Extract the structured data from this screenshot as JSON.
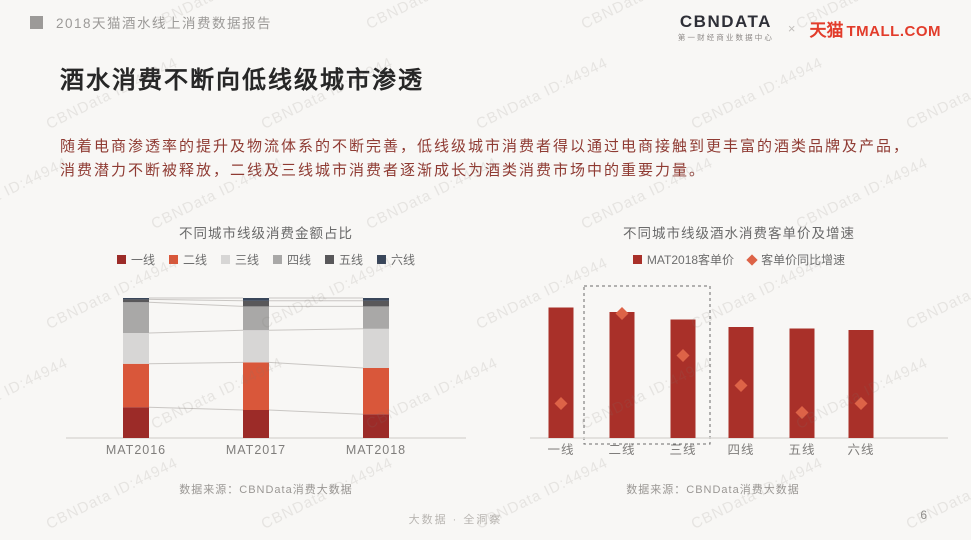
{
  "page": {
    "background": "#f8f7f5",
    "watermark_text": "CBNData ID:44944",
    "footer_slogan": "大数据 · 全洞察",
    "page_number": "6"
  },
  "header": {
    "report_title": "2018天猫酒水线上消费数据报告",
    "cbndata_logo": "CBNDATA",
    "cbndata_sub": "第一财经商业数据中心",
    "separator": "×",
    "tmall_cn": "天猫",
    "tmall_en": "TMALL.COM"
  },
  "content": {
    "headline": "酒水消费不断向低线级城市渗透",
    "body_line1": "随着电商渗透率的提升及物流体系的不断完善，低线级城市消费者得以通过电商接触到更丰富的酒类品牌及产品，",
    "body_line2": "消费潜力不断被释放，二线及三线城市消费者逐渐成长为酒类消费市场中的重要力量。"
  },
  "left_chart": {
    "title": "不同城市线级消费金额占比",
    "source": "数据来源：CBNData消费大数据"
  },
  "right_chart": {
    "title": "不同城市线级酒水消费客单价及增速",
    "source": "数据来源：CBNData消费大数据"
  },
  "chart_data": [
    {
      "type": "bar",
      "subtype": "100%-stacked-column",
      "title": "不同城市线级消费金额占比",
      "categories": [
        "MAT2016",
        "MAT2017",
        "MAT2018"
      ],
      "series": [
        {
          "name": "一线",
          "color": "#9c2b28",
          "values_pct": [
            22,
            20,
            17
          ]
        },
        {
          "name": "二线",
          "color": "#d9573a",
          "values_pct": [
            31,
            34,
            33
          ]
        },
        {
          "name": "三线",
          "color": "#d7d6d5",
          "values_pct": [
            22,
            23,
            28
          ]
        },
        {
          "name": "四线",
          "color": "#a9a8a7",
          "values_pct": [
            22,
            17,
            16
          ]
        },
        {
          "name": "五线",
          "color": "#59585a",
          "values_pct": [
            2,
            4,
            4
          ]
        },
        {
          "name": "六线",
          "color": "#39465a",
          "values_pct": [
            1,
            2,
            2
          ]
        }
      ],
      "xlabel": "",
      "ylabel": "",
      "ylim_pct": [
        0,
        100
      ],
      "grid": false,
      "legend_position": "top",
      "connector_lines": true,
      "source": "数据来源：CBNData消费大数据",
      "note": "share values estimated from segment heights; no numeric labels shown in figure"
    },
    {
      "type": "bar",
      "subtype": "column-with-diamond-markers",
      "title": "不同城市线级酒水消费客单价及增速",
      "categories": [
        "一线",
        "二线",
        "三线",
        "四线",
        "五线",
        "六线"
      ],
      "series": [
        {
          "name": "MAT2018客单价",
          "marker": "square",
          "color": "#a93029",
          "values_rel": [
            87,
            84,
            79,
            74,
            73,
            72
          ]
        },
        {
          "name": "客单价同比增速",
          "marker": "diamond",
          "color": "#dd6347",
          "values_rel": [
            23,
            83,
            55,
            35,
            17,
            23
          ]
        }
      ],
      "highlight_box": {
        "categories": [
          "二线",
          "三线"
        ],
        "style": "dashed"
      },
      "xlabel": "",
      "ylabel": "",
      "grid": false,
      "legend_position": "top",
      "source": "数据来源：CBNData消费大数据",
      "note": "heights on 0-100 relative scale estimated from pixels; no numeric axis shown in figure"
    }
  ]
}
